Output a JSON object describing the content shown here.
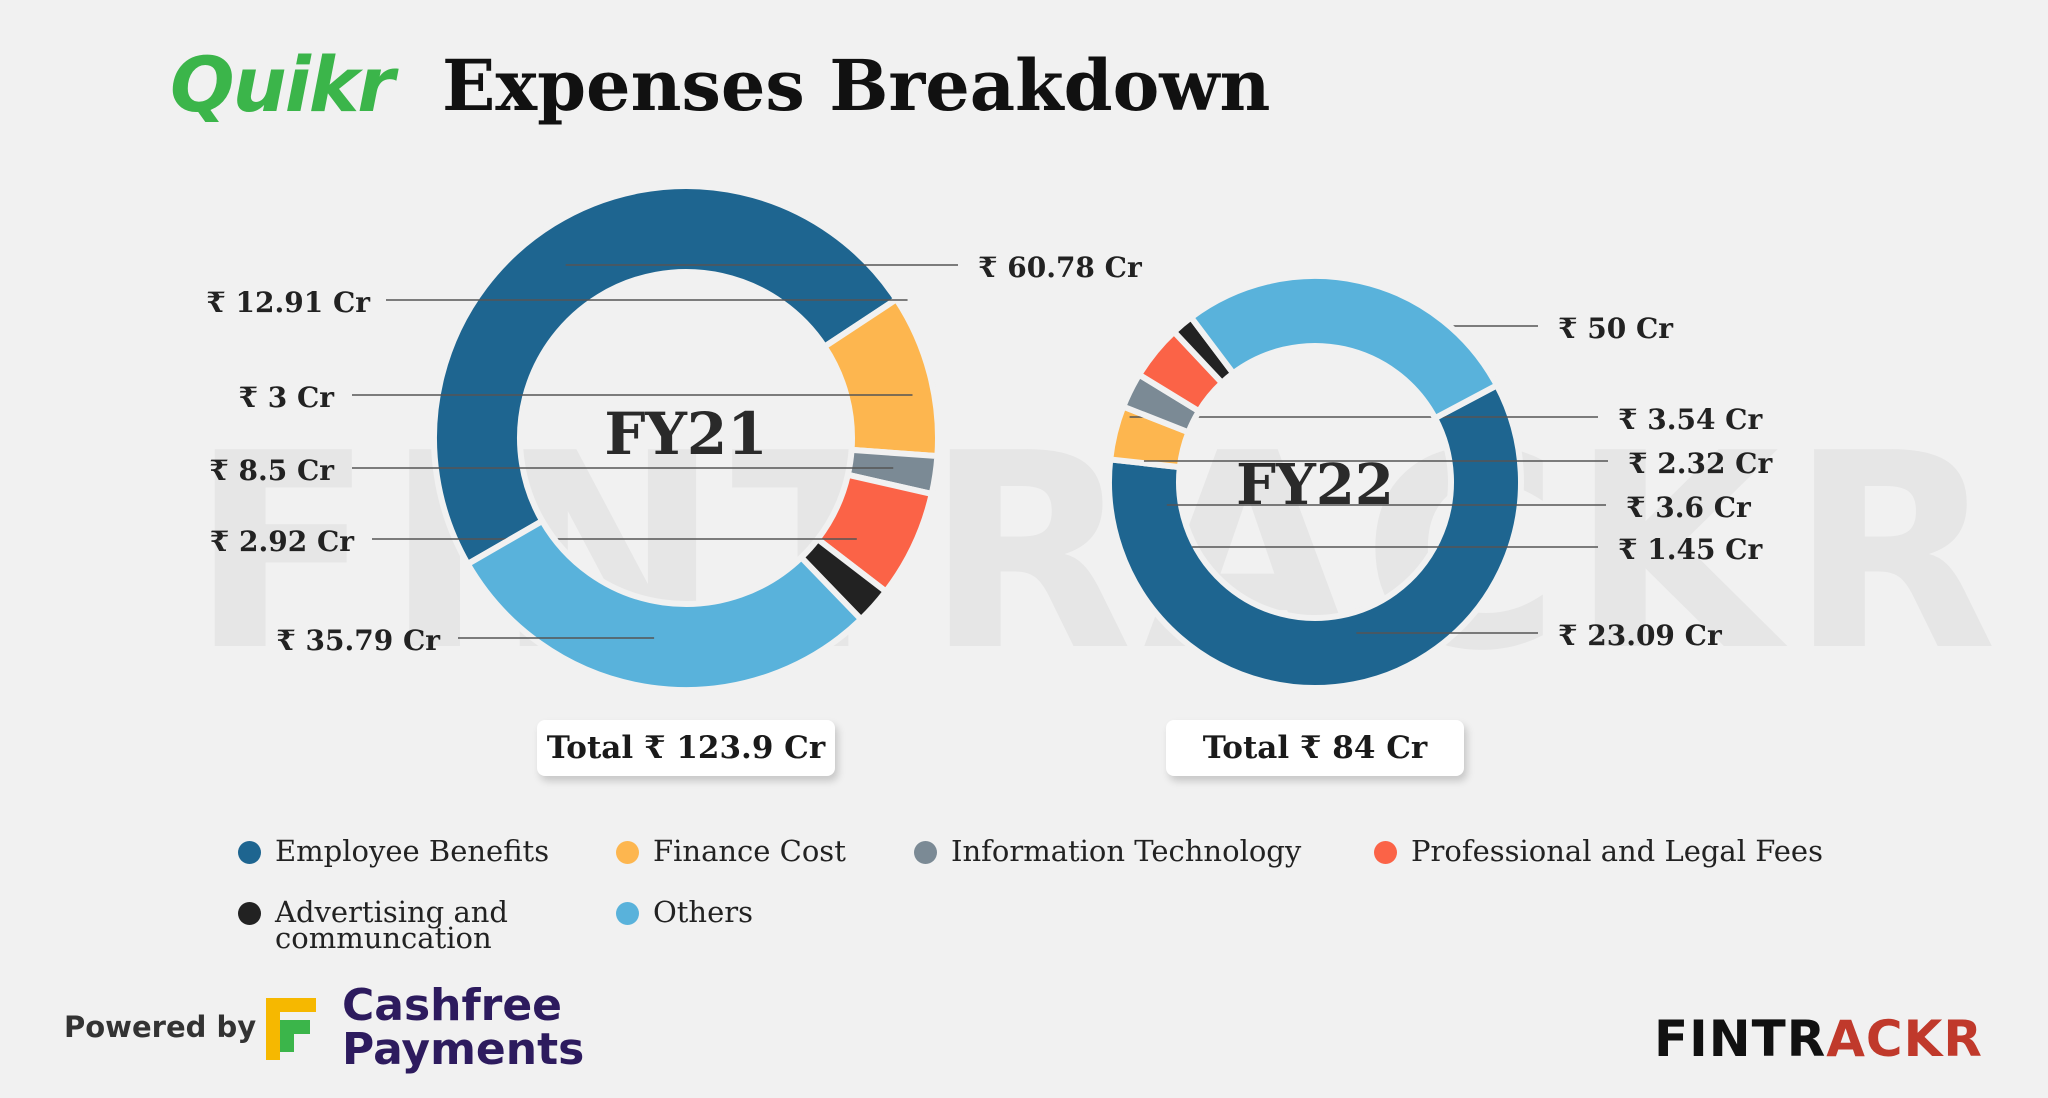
{
  "header": {
    "logo_text": "Quikr",
    "title": "Expenses Breakdown"
  },
  "watermark": "FINTRACKR",
  "colors": {
    "employee_benefits": "#1e6590",
    "finance_cost": "#fdb64f",
    "information_technology": "#7b8a95",
    "professional_legal_fees": "#fb6347",
    "advertising": "#222222",
    "others": "#59b2db",
    "quikr_green": "#3bb54a"
  },
  "chart_data": [
    {
      "type": "pie",
      "center_label": "FY21",
      "total_label": "Total ₹ 123.9 Cr",
      "categories": [
        "Employee Benefits",
        "Finance Cost",
        "Information Technology",
        "Professional and Legal Fees",
        "Advertising and communcation",
        "Others"
      ],
      "values": [
        60.78,
        12.91,
        3,
        8.5,
        2.92,
        35.79
      ],
      "data_labels": [
        "₹ 60.78 Cr",
        "₹ 12.91 Cr",
        "₹ 3 Cr",
        "₹ 8.5 Cr",
        "₹ 2.92 Cr",
        "₹ 35.79 Cr"
      ]
    },
    {
      "type": "pie",
      "center_label": "FY22",
      "total_label": "Total ₹ 84 Cr",
      "categories": [
        "Employee Benefits",
        "Finance Cost",
        "Information Technology",
        "Professional and Legal Fees",
        "Advertising and communcation",
        "Others"
      ],
      "values": [
        50,
        3.54,
        2.32,
        3.6,
        1.45,
        23.09
      ],
      "data_labels": [
        "₹ 50 Cr",
        "₹ 3.54 Cr",
        "₹ 2.32 Cr",
        "₹ 3.6 Cr",
        "₹ 1.45 Cr",
        "₹ 23.09 Cr"
      ]
    }
  ],
  "legend": [
    {
      "label": "Employee Benefits",
      "color": "#1e6590"
    },
    {
      "label": "Finance Cost",
      "color": "#fdb64f"
    },
    {
      "label": "Information Technology",
      "color": "#7b8a95"
    },
    {
      "label": "Professional and Legal Fees",
      "color": "#fb6347"
    },
    {
      "label": "Advertising and communcation",
      "color": "#222222"
    },
    {
      "label": "Others",
      "color": "#59b2db"
    }
  ],
  "footer": {
    "powered_by": "Powered by",
    "cashfree_line1": "Cashfree",
    "cashfree_line2": "Payments",
    "fintrackr_part1": "FINTR",
    "fintrackr_part2": "ACKR"
  }
}
